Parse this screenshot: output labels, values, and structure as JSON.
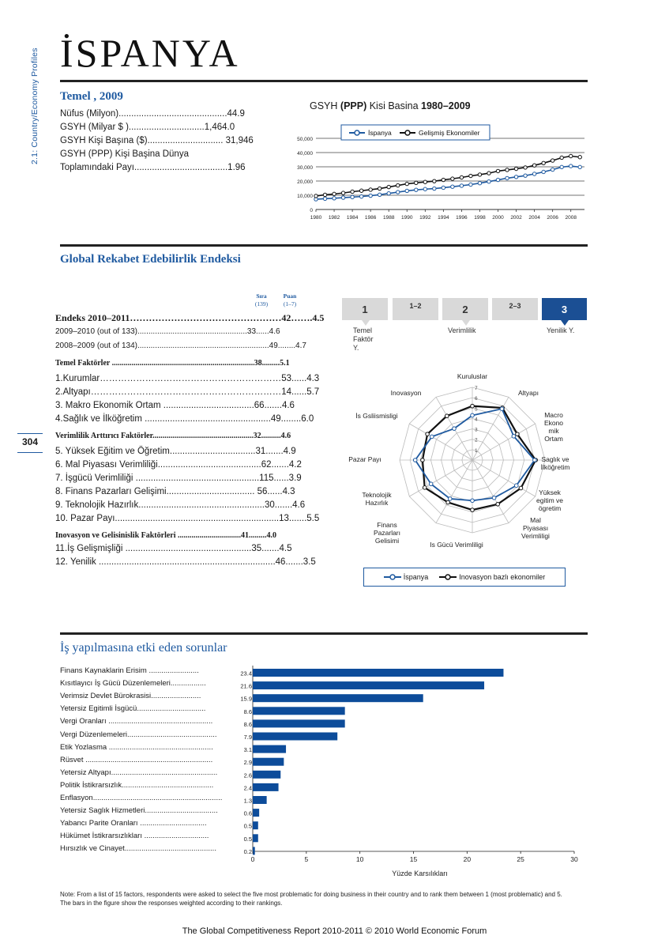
{
  "side_label": "2.1: Country/Economy Profiles",
  "page_number": "304",
  "country_title": "İSPANYA",
  "basics": {
    "heading": "Temel , 2009",
    "lines": [
      "Nüfus        (Milyon)...........................................44.9",
      "GSYH    (Milyar $    )..............................1,464.0",
      "GSYH Kişi Başına  ($).............................. 31,946",
      "GSYH  (PPP)  Kişi  Başina  Dünya",
      "Toplamındaki   Payı.....................................1.96"
    ]
  },
  "gdp_chart": {
    "title_pre": "GSYH ",
    "title_bold": "(PPP)",
    "title_mid": " Kisi Basina ",
    "title_years": "1980–2009",
    "legend": [
      "İspanya",
      "Gelişmiş Ekonomiler"
    ],
    "yticks": [
      "0",
      "10,000",
      "20,000",
      "30,000",
      "40,000",
      "50,000"
    ],
    "xticks": [
      "1980",
      "1982",
      "1984",
      "1986",
      "1988",
      "1990",
      "1992",
      "1994",
      "1996",
      "1998",
      "2000",
      "2002",
      "2004",
      "2006",
      "2008"
    ]
  },
  "gci": {
    "heading": "Global Rekabet Edebilirlik Endeksi",
    "col_rank": "Sıra",
    "col_rank_sub": "(139)",
    "col_score": "Puan",
    "col_score_sub": "(1–7)",
    "rows": [
      {
        "text": "Endeks 2010–2011…………………………………………42…….4.5",
        "style": "index"
      },
      {
        "text": "2009–2010   (out    of    133)..................................................33......4.6",
        "style": "small"
      },
      {
        "text": "2008–2009 (out of 134)............................................................49........4.7",
        "style": "small"
      },
      {
        "text": "Temel Faktörler ........................................................................38.........5.1",
        "style": "head"
      },
      {
        "text": "1.Kurumlar……………………………………………………53......4.3",
        "style": "item"
      },
      {
        "text": "2.Altyapı………………………………………………………14......5.7",
        "style": "item"
      },
      {
        "text": "3. Makro Ekonomik Ortam ....................................66.......4.6",
        "style": "item"
      },
      {
        "text": "4.Sağlık ve İlköğretim ..................................................49........6.0",
        "style": "item"
      },
      {
        "text": "Verimlilik Arttırıcı Faktörler...................................................32..........4.6",
        "style": "head"
      },
      {
        "text": "5. Yüksek Eğitim ve Öğretim..................................31.......4.9",
        "style": "item"
      },
      {
        "text": "6. Mal Piyasası Verimliliği.........................................62.......4.2",
        "style": "item"
      },
      {
        "text": "7. İşgücü Verimliliği .................................................115......3.9",
        "style": "item"
      },
      {
        "text": "8. Finans Pazarları Gelişimi................................... 56......4.3",
        "style": "item"
      },
      {
        "text": "9. Teknolojik Hazırlık..................................................30.......4.6",
        "style": "item"
      },
      {
        "text": "10. Pazar Payı.................................................................13.......5.5",
        "style": "item"
      },
      {
        "text": "Inovasyon ve Gelisinislik Faktörleri ................................41.........4.0",
        "style": "head"
      },
      {
        "text": "11.İş Gelişmişliği ..................................................35.......4.5",
        "style": "item"
      },
      {
        "text": "12. Yenilik  ......................................................................46.......3.5",
        "style": "item"
      }
    ]
  },
  "stages": {
    "boxes": [
      "1",
      "1–2",
      "2",
      "2–3",
      "3"
    ],
    "labels": [
      "Temel\nFaktör\nY.",
      "Verimlilik",
      "Yenilik Y."
    ],
    "active": "3"
  },
  "radar": {
    "axes": [
      "Kuruluslar",
      "Altyapı",
      "Macro\nEkono\nmik\nOrtam",
      "Saglık  ve\nİlköğretim",
      "Yüksek\negitim ve\nögretim",
      "Mal\nPiyasası\nVerimliligi",
      "Is Gücü Verimliligi",
      "Finans\nPazarları\nGelisimi",
      "Teknolojik\nHazırlık",
      "Pazar Payı",
      "İs Gsliismisligi",
      "Inovasyon"
    ],
    "rings": [
      "1",
      "2",
      "3",
      "4",
      "5",
      "6",
      "7"
    ],
    "legend": [
      "İspanya",
      "Inovasyon bazlı ekonomiler"
    ]
  },
  "problems": {
    "heading": "İş yapılmasına etki eden sorunlar",
    "xlabel": "Yüzde Karsılıkları",
    "note": "Note: From a list of 15 factors, respondents were asked to select the five most problematic for doing business in their country and to rank them between 1 (most problematic) and 5. The bars in the figure show the responses weighted according to their rankings."
  },
  "footer": "The Global Competitiveness Report 2010-2011 © 2010 World Economic Forum",
  "colors": {
    "accent": "#1f5aa0",
    "bar": "#0d4c9a",
    "comparison": "#111111"
  },
  "chart_data": [
    {
      "type": "line",
      "title": "GSYH (PPP) Kisi Basina 1980–2009",
      "ylim": [
        0,
        50000
      ],
      "x": [
        1980,
        1981,
        1982,
        1983,
        1984,
        1985,
        1986,
        1987,
        1988,
        1989,
        1990,
        1991,
        1992,
        1993,
        1994,
        1995,
        1996,
        1997,
        1998,
        1999,
        2000,
        2001,
        2002,
        2003,
        2004,
        2005,
        2006,
        2007,
        2008,
        2009
      ],
      "series": [
        {
          "name": "İspanya",
          "values": [
            7200,
            7600,
            7900,
            8300,
            8700,
            9100,
            9700,
            10400,
            11300,
            12200,
            13100,
            13800,
            14300,
            14700,
            15300,
            16000,
            16700,
            17500,
            18500,
            19600,
            20800,
            22000,
            22900,
            23800,
            25000,
            26400,
            28000,
            29800,
            30500,
            29800
          ]
        },
        {
          "name": "Gelişmiş Ekonomiler",
          "values": [
            9500,
            10300,
            10900,
            11600,
            12500,
            13200,
            13900,
            14700,
            15800,
            16900,
            18000,
            18700,
            19300,
            19900,
            20800,
            21600,
            22500,
            23600,
            24500,
            25500,
            27000,
            27800,
            28600,
            29500,
            31000,
            32600,
            34400,
            36400,
            37500,
            36800
          ]
        }
      ],
      "grid": true,
      "legend": "top"
    },
    {
      "type": "radar",
      "categories": [
        "Kuruluslar",
        "Altyapı",
        "Macro Ekonomik Ortam",
        "Saglık ve İlköğretim",
        "Yüksek egitim ve ögretim",
        "Mal Piyasası Verimliligi",
        "Is Gücü Verimliligi",
        "Finans Pazarları Gelisimi",
        "Teknolojik Hazırlık",
        "Pazar Payı",
        "İs Gsliismisligi",
        "Inovasyon"
      ],
      "ylim": [
        1,
        7
      ],
      "series": [
        {
          "name": "İspanya",
          "values": [
            4.3,
            5.7,
            4.6,
            6.0,
            4.9,
            4.2,
            3.9,
            4.3,
            4.6,
            5.5,
            4.5,
            3.5
          ]
        },
        {
          "name": "Inovasyon bazlı ekonomiler",
          "values": [
            5.2,
            5.8,
            5.0,
            6.1,
            5.4,
            4.9,
            4.8,
            4.7,
            5.3,
            4.8,
            5.0,
            4.9
          ]
        }
      ],
      "legend": "bottom"
    },
    {
      "type": "bar",
      "orientation": "horizontal",
      "categories": [
        "Finans  Kaynaklarin  Erisim",
        "Kısıtlayıcı İş Gücü Düzenlemeleri",
        "Verimsiz Devlet Bürokrasisi",
        "Yetersiz Egitimli İsgücü",
        "Vergi Oranları",
        "Vergi Düzenlemeleri",
        "Etik Yozlasma",
        "Rüsvet",
        "Yetersiz Altyapı",
        "Politik İstikrarsızlık",
        "Enflasyon",
        "Yetersiz Saglık Hizmetleri",
        "Yabancı Parite Oranları",
        "Hükümet İstikrarsızlıkları",
        "Hırsızlık ve Cinayet"
      ],
      "values": [
        23.4,
        21.6,
        15.9,
        8.6,
        8.6,
        7.9,
        3.1,
        2.9,
        2.6,
        2.4,
        1.3,
        0.6,
        0.5,
        0.5,
        0.2
      ],
      "value_labels": [
        "23.4",
        "21.6",
        "15.9",
        "8.6",
        "8.6",
        "7.9",
        "3.1",
        "2.9",
        "2.6",
        "2.4",
        "1.3",
        "0.6",
        "0.5",
        "0.5",
        "0.2"
      ],
      "label_rows": [
        "Finans  Kaynaklarin  Erisim  ........................",
        "Kısıtlayıcı İş Gücü Düzenlemeleri.................",
        "Verimsiz  Devlet  Bürokrasisi........................",
        "Yetersiz  Egitimli  İsgücü.................................",
        "Vergi  Oranları  ..................................................",
        "Vergi Düzenlemeleri...........................................",
        "Etik Yozlasma ..................................................",
        "Rüsvet  .............................................................",
        "Yetersiz Altyapı...................................................",
        "Politik İstikrarsızlık............................................",
        "Enflasyon..............................................................",
        "Yetersiz Saglık Hizmetleri...................................",
        "Yabancı Parite   Oranları  ................................",
        "Hükümet   İstikrarsızlıkları ...............................",
        "Hırsızlık ve Cinayet............................................"
      ],
      "xlim": [
        0,
        30
      ],
      "xticks": [
        "0",
        "5",
        "10",
        "15",
        "20",
        "25",
        "30"
      ],
      "xlabel": "Yüzde Karsılıkları"
    }
  ]
}
